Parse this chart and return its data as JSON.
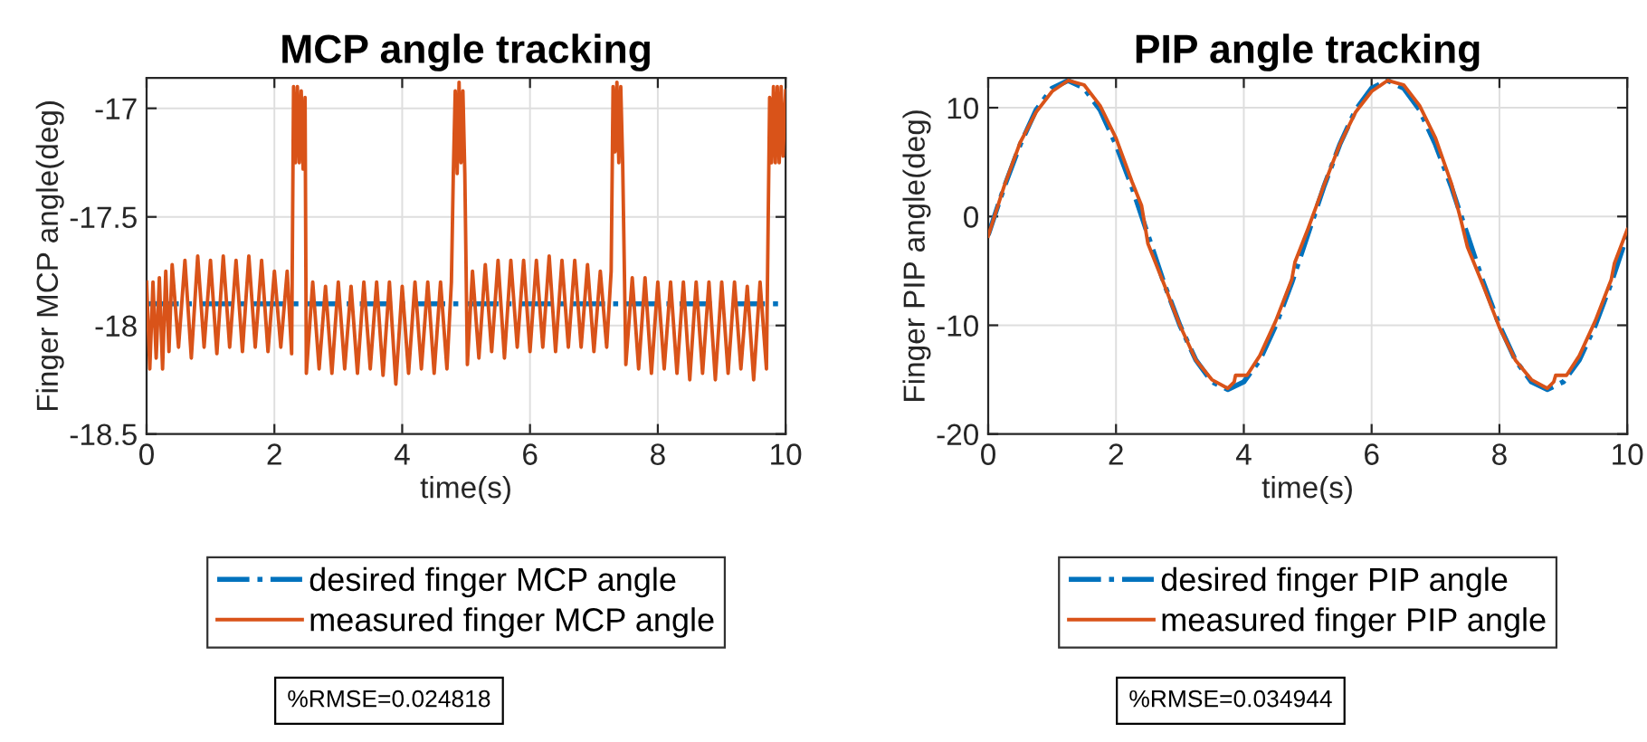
{
  "chart_data": [
    {
      "type": "line",
      "title": "MCP angle tracking",
      "xlabel": "time(s)",
      "ylabel": "Finger MCP angle(deg)",
      "xlim": [
        0,
        10
      ],
      "xticks": [
        0,
        2,
        4,
        6,
        8,
        10
      ],
      "ylim": [
        -18.5,
        -16.86
      ],
      "yticks": [
        -18.5,
        -18,
        -17.5,
        -17
      ],
      "grid": true,
      "legend": "bottom",
      "marker": "none",
      "annotations": [
        "%RMSE=0.024818"
      ],
      "series": [
        {
          "name": "desired finger MCP angle",
          "color": "#0072bd",
          "line_style": "dashdot",
          "x": [
            0,
            10
          ],
          "values": [
            -17.9,
            -17.9
          ]
        },
        {
          "name": "measured finger MCP angle",
          "color": "#d95319",
          "line_style": "solid",
          "x": [
            0,
            0.05,
            0.1,
            0.15,
            0.2,
            0.25,
            0.3,
            0.35,
            0.4,
            0.5,
            0.6,
            0.7,
            0.8,
            0.9,
            1.0,
            1.1,
            1.2,
            1.3,
            1.4,
            1.5,
            1.6,
            1.7,
            1.8,
            1.9,
            2.0,
            2.1,
            2.2,
            2.27,
            2.3,
            2.33,
            2.36,
            2.39,
            2.42,
            2.45,
            2.48,
            2.5,
            2.6,
            2.7,
            2.8,
            2.9,
            3.0,
            3.1,
            3.2,
            3.3,
            3.4,
            3.5,
            3.6,
            3.7,
            3.8,
            3.9,
            4.0,
            4.1,
            4.2,
            4.3,
            4.4,
            4.5,
            4.6,
            4.7,
            4.77,
            4.8,
            4.83,
            4.86,
            4.89,
            4.92,
            4.95,
            4.98,
            5.02,
            5.1,
            5.2,
            5.3,
            5.4,
            5.5,
            5.6,
            5.7,
            5.8,
            5.9,
            6.0,
            6.1,
            6.2,
            6.3,
            6.4,
            6.5,
            6.6,
            6.7,
            6.8,
            6.9,
            7.0,
            7.1,
            7.2,
            7.27,
            7.3,
            7.33,
            7.36,
            7.39,
            7.42,
            7.45,
            7.5,
            7.6,
            7.7,
            7.8,
            7.9,
            8.0,
            8.1,
            8.2,
            8.3,
            8.4,
            8.5,
            8.6,
            8.7,
            8.8,
            8.9,
            9.0,
            9.1,
            9.2,
            9.3,
            9.4,
            9.5,
            9.6,
            9.7,
            9.75,
            9.78,
            9.81,
            9.84,
            9.87,
            9.9,
            9.93,
            9.96,
            10.0
          ],
          "values": [
            -17.8,
            -18.2,
            -17.8,
            -18.15,
            -17.78,
            -18.2,
            -17.75,
            -18.12,
            -17.72,
            -18.1,
            -17.7,
            -18.15,
            -17.68,
            -18.1,
            -17.7,
            -18.13,
            -17.68,
            -18.1,
            -17.7,
            -18.12,
            -17.68,
            -18.1,
            -17.7,
            -18.12,
            -17.75,
            -18.1,
            -17.75,
            -18.13,
            -16.9,
            -17.25,
            -16.9,
            -17.25,
            -16.92,
            -17.28,
            -16.95,
            -18.22,
            -17.8,
            -18.2,
            -17.82,
            -18.22,
            -17.8,
            -18.2,
            -17.82,
            -18.22,
            -17.8,
            -18.2,
            -17.8,
            -18.23,
            -17.8,
            -18.27,
            -17.82,
            -18.22,
            -17.8,
            -18.2,
            -17.8,
            -18.22,
            -17.8,
            -18.2,
            -17.8,
            -17.3,
            -16.92,
            -17.3,
            -16.88,
            -17.25,
            -16.92,
            -17.3,
            -18.18,
            -17.75,
            -18.15,
            -17.72,
            -18.12,
            -17.7,
            -18.15,
            -17.7,
            -18.1,
            -17.7,
            -18.12,
            -17.7,
            -18.1,
            -17.68,
            -18.12,
            -17.7,
            -18.1,
            -17.7,
            -18.1,
            -17.72,
            -18.12,
            -17.75,
            -18.1,
            -17.75,
            -16.9,
            -17.2,
            -16.88,
            -17.25,
            -16.9,
            -17.25,
            -18.18,
            -17.78,
            -18.2,
            -17.78,
            -18.22,
            -17.8,
            -18.2,
            -17.8,
            -18.22,
            -17.8,
            -18.25,
            -17.8,
            -18.22,
            -17.8,
            -18.25,
            -17.8,
            -18.22,
            -17.8,
            -18.2,
            -17.82,
            -18.25,
            -17.8,
            -18.2,
            -16.95,
            -17.25,
            -16.9,
            -17.25,
            -16.9,
            -17.25,
            -16.9,
            -17.22,
            -16.92
          ]
        }
      ]
    },
    {
      "type": "line",
      "title": "PIP angle tracking",
      "xlabel": "time(s)",
      "ylabel": "Finger PIP angle(deg)",
      "xlim": [
        0,
        10
      ],
      "xticks": [
        0,
        2,
        4,
        6,
        8,
        10
      ],
      "ylim": [
        -20,
        12.74
      ],
      "yticks": [
        -20,
        -10,
        0,
        10
      ],
      "grid": true,
      "legend": "bottom",
      "marker": "none",
      "annotations": [
        "%RMSE=0.034944"
      ],
      "series": [
        {
          "name": "desired finger PIP angle",
          "color": "#0072bd",
          "line_style": "dashdot",
          "x": [
            0,
            0.25,
            0.5,
            0.75,
            1.0,
            1.25,
            1.5,
            1.75,
            2.0,
            2.25,
            2.5,
            2.75,
            3.0,
            3.25,
            3.5,
            3.75,
            4.0,
            4.25,
            4.5,
            4.75,
            5.0,
            5.25,
            5.5,
            5.75,
            6.0,
            6.25,
            6.5,
            6.75,
            7.0,
            7.25,
            7.5,
            7.75,
            8.0,
            8.25,
            8.5,
            8.75,
            9.0,
            9.25,
            9.5,
            9.75,
            10.0
          ],
          "values": [
            -1.7,
            2.7,
            6.6,
            9.8,
            11.8,
            12.5,
            11.8,
            9.8,
            6.6,
            2.7,
            -1.7,
            -6.1,
            -10.0,
            -13.2,
            -15.2,
            -15.9,
            -15.2,
            -13.2,
            -10.0,
            -6.1,
            -1.7,
            2.7,
            6.6,
            9.8,
            11.8,
            12.5,
            11.8,
            9.8,
            6.6,
            2.7,
            -1.7,
            -6.1,
            -10.0,
            -13.2,
            -15.2,
            -15.9,
            -15.2,
            -13.2,
            -10.0,
            -6.1,
            -1.7
          ]
        },
        {
          "name": "measured finger PIP angle",
          "color": "#d95319",
          "line_style": "solid",
          "x": [
            0,
            0.25,
            0.5,
            0.75,
            1.0,
            1.25,
            1.5,
            1.75,
            2.0,
            2.25,
            2.4,
            2.5,
            2.75,
            3.0,
            3.25,
            3.5,
            3.75,
            3.85,
            3.87,
            4.05,
            4.25,
            4.5,
            4.75,
            4.8,
            5.0,
            5.25,
            5.5,
            5.75,
            6.0,
            6.25,
            6.5,
            6.75,
            7.0,
            7.25,
            7.4,
            7.5,
            7.75,
            8.0,
            8.25,
            8.5,
            8.75,
            8.85,
            8.88,
            9.05,
            9.25,
            9.5,
            9.75,
            9.8,
            10.0
          ],
          "values": [
            -1.8,
            2.8,
            6.8,
            9.6,
            11.5,
            12.5,
            12.1,
            10.2,
            7.2,
            3.2,
            1.0,
            -2.5,
            -6.2,
            -10.0,
            -13.2,
            -15.0,
            -15.8,
            -15.2,
            -14.6,
            -14.6,
            -12.8,
            -9.6,
            -5.8,
            -4.2,
            -1.2,
            2.8,
            6.6,
            9.6,
            11.5,
            12.5,
            12.1,
            10.2,
            7.2,
            3.0,
            -0.4,
            -2.8,
            -6.4,
            -10.2,
            -13.2,
            -15.0,
            -15.8,
            -15.2,
            -14.6,
            -14.6,
            -12.8,
            -9.6,
            -5.8,
            -4.3,
            -1.2
          ]
        }
      ]
    }
  ]
}
